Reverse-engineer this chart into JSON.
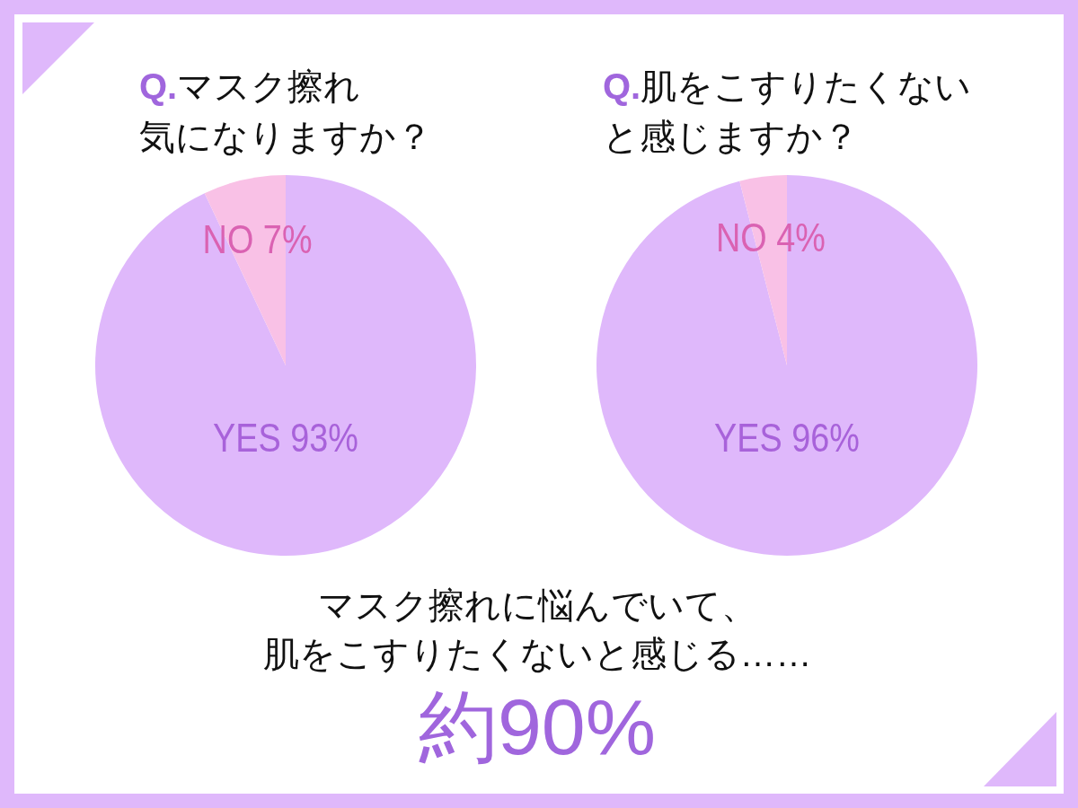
{
  "chart_data": [
    {
      "type": "pie",
      "title": "**Q.**マスク擦れ気になりますか？",
      "categories": [
        "YES",
        "NO"
      ],
      "values": [
        93,
        7
      ],
      "colors": [
        "#dfb8fb",
        "#f9c1e6"
      ],
      "value_labels": [
        "93%",
        "7%"
      ]
    },
    {
      "type": "pie",
      "title": "**Q.**肌をこすりたくないと感じますか？",
      "categories": [
        "YES",
        "NO"
      ],
      "values": [
        96,
        4
      ],
      "colors": [
        "#dfb8fb",
        "#f9c1e6"
      ],
      "value_labels": [
        "96%",
        "4%"
      ]
    },
    {
      "type": "other",
      "annotations": [
        "マスク擦れに悩んでいて、肌をこすりたくないと感じる……",
        "約90%"
      ]
    }
  ]
}
